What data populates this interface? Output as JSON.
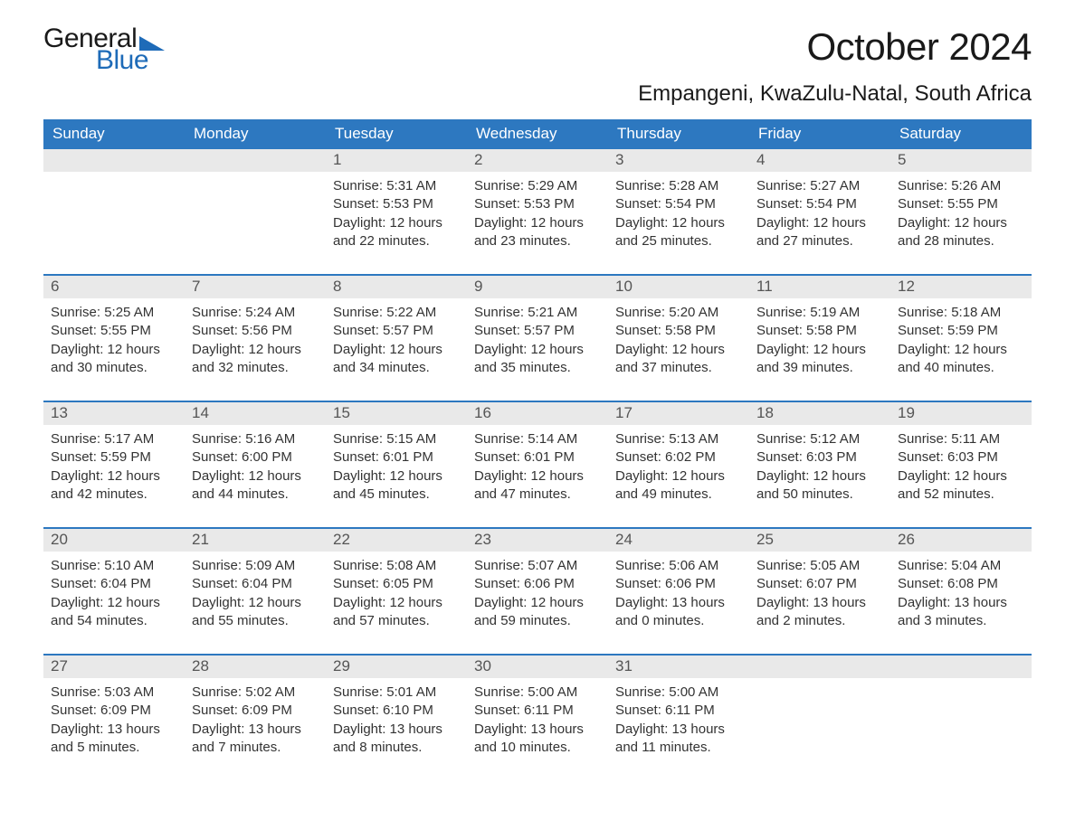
{
  "brand": {
    "word1": "General",
    "word2": "Blue"
  },
  "title": "October 2024",
  "location": "Empangeni, KwaZulu-Natal, South Africa",
  "colors": {
    "header_bg": "#2d78c0",
    "header_text": "#ffffff",
    "daynum_bg": "#e9e9e9",
    "daynum_text": "#555555",
    "body_text": "#333333",
    "brand_blue": "#1e6bb8",
    "page_bg": "#ffffff"
  },
  "typography": {
    "title_fontsize": 42,
    "location_fontsize": 24,
    "dow_fontsize": 17,
    "daynum_fontsize": 17,
    "cell_fontsize": 15
  },
  "layout": {
    "columns": 7,
    "rows": 5
  },
  "days_of_week": [
    "Sunday",
    "Monday",
    "Tuesday",
    "Wednesday",
    "Thursday",
    "Friday",
    "Saturday"
  ],
  "weeks": [
    [
      null,
      null,
      {
        "n": "1",
        "sr": "Sunrise: 5:31 AM",
        "ss": "Sunset: 5:53 PM",
        "d1": "Daylight: 12 hours",
        "d2": "and 22 minutes."
      },
      {
        "n": "2",
        "sr": "Sunrise: 5:29 AM",
        "ss": "Sunset: 5:53 PM",
        "d1": "Daylight: 12 hours",
        "d2": "and 23 minutes."
      },
      {
        "n": "3",
        "sr": "Sunrise: 5:28 AM",
        "ss": "Sunset: 5:54 PM",
        "d1": "Daylight: 12 hours",
        "d2": "and 25 minutes."
      },
      {
        "n": "4",
        "sr": "Sunrise: 5:27 AM",
        "ss": "Sunset: 5:54 PM",
        "d1": "Daylight: 12 hours",
        "d2": "and 27 minutes."
      },
      {
        "n": "5",
        "sr": "Sunrise: 5:26 AM",
        "ss": "Sunset: 5:55 PM",
        "d1": "Daylight: 12 hours",
        "d2": "and 28 minutes."
      }
    ],
    [
      {
        "n": "6",
        "sr": "Sunrise: 5:25 AM",
        "ss": "Sunset: 5:55 PM",
        "d1": "Daylight: 12 hours",
        "d2": "and 30 minutes."
      },
      {
        "n": "7",
        "sr": "Sunrise: 5:24 AM",
        "ss": "Sunset: 5:56 PM",
        "d1": "Daylight: 12 hours",
        "d2": "and 32 minutes."
      },
      {
        "n": "8",
        "sr": "Sunrise: 5:22 AM",
        "ss": "Sunset: 5:57 PM",
        "d1": "Daylight: 12 hours",
        "d2": "and 34 minutes."
      },
      {
        "n": "9",
        "sr": "Sunrise: 5:21 AM",
        "ss": "Sunset: 5:57 PM",
        "d1": "Daylight: 12 hours",
        "d2": "and 35 minutes."
      },
      {
        "n": "10",
        "sr": "Sunrise: 5:20 AM",
        "ss": "Sunset: 5:58 PM",
        "d1": "Daylight: 12 hours",
        "d2": "and 37 minutes."
      },
      {
        "n": "11",
        "sr": "Sunrise: 5:19 AM",
        "ss": "Sunset: 5:58 PM",
        "d1": "Daylight: 12 hours",
        "d2": "and 39 minutes."
      },
      {
        "n": "12",
        "sr": "Sunrise: 5:18 AM",
        "ss": "Sunset: 5:59 PM",
        "d1": "Daylight: 12 hours",
        "d2": "and 40 minutes."
      }
    ],
    [
      {
        "n": "13",
        "sr": "Sunrise: 5:17 AM",
        "ss": "Sunset: 5:59 PM",
        "d1": "Daylight: 12 hours",
        "d2": "and 42 minutes."
      },
      {
        "n": "14",
        "sr": "Sunrise: 5:16 AM",
        "ss": "Sunset: 6:00 PM",
        "d1": "Daylight: 12 hours",
        "d2": "and 44 minutes."
      },
      {
        "n": "15",
        "sr": "Sunrise: 5:15 AM",
        "ss": "Sunset: 6:01 PM",
        "d1": "Daylight: 12 hours",
        "d2": "and 45 minutes."
      },
      {
        "n": "16",
        "sr": "Sunrise: 5:14 AM",
        "ss": "Sunset: 6:01 PM",
        "d1": "Daylight: 12 hours",
        "d2": "and 47 minutes."
      },
      {
        "n": "17",
        "sr": "Sunrise: 5:13 AM",
        "ss": "Sunset: 6:02 PM",
        "d1": "Daylight: 12 hours",
        "d2": "and 49 minutes."
      },
      {
        "n": "18",
        "sr": "Sunrise: 5:12 AM",
        "ss": "Sunset: 6:03 PM",
        "d1": "Daylight: 12 hours",
        "d2": "and 50 minutes."
      },
      {
        "n": "19",
        "sr": "Sunrise: 5:11 AM",
        "ss": "Sunset: 6:03 PM",
        "d1": "Daylight: 12 hours",
        "d2": "and 52 minutes."
      }
    ],
    [
      {
        "n": "20",
        "sr": "Sunrise: 5:10 AM",
        "ss": "Sunset: 6:04 PM",
        "d1": "Daylight: 12 hours",
        "d2": "and 54 minutes."
      },
      {
        "n": "21",
        "sr": "Sunrise: 5:09 AM",
        "ss": "Sunset: 6:04 PM",
        "d1": "Daylight: 12 hours",
        "d2": "and 55 minutes."
      },
      {
        "n": "22",
        "sr": "Sunrise: 5:08 AM",
        "ss": "Sunset: 6:05 PM",
        "d1": "Daylight: 12 hours",
        "d2": "and 57 minutes."
      },
      {
        "n": "23",
        "sr": "Sunrise: 5:07 AM",
        "ss": "Sunset: 6:06 PM",
        "d1": "Daylight: 12 hours",
        "d2": "and 59 minutes."
      },
      {
        "n": "24",
        "sr": "Sunrise: 5:06 AM",
        "ss": "Sunset: 6:06 PM",
        "d1": "Daylight: 13 hours",
        "d2": "and 0 minutes."
      },
      {
        "n": "25",
        "sr": "Sunrise: 5:05 AM",
        "ss": "Sunset: 6:07 PM",
        "d1": "Daylight: 13 hours",
        "d2": "and 2 minutes."
      },
      {
        "n": "26",
        "sr": "Sunrise: 5:04 AM",
        "ss": "Sunset: 6:08 PM",
        "d1": "Daylight: 13 hours",
        "d2": "and 3 minutes."
      }
    ],
    [
      {
        "n": "27",
        "sr": "Sunrise: 5:03 AM",
        "ss": "Sunset: 6:09 PM",
        "d1": "Daylight: 13 hours",
        "d2": "and 5 minutes."
      },
      {
        "n": "28",
        "sr": "Sunrise: 5:02 AM",
        "ss": "Sunset: 6:09 PM",
        "d1": "Daylight: 13 hours",
        "d2": "and 7 minutes."
      },
      {
        "n": "29",
        "sr": "Sunrise: 5:01 AM",
        "ss": "Sunset: 6:10 PM",
        "d1": "Daylight: 13 hours",
        "d2": "and 8 minutes."
      },
      {
        "n": "30",
        "sr": "Sunrise: 5:00 AM",
        "ss": "Sunset: 6:11 PM",
        "d1": "Daylight: 13 hours",
        "d2": "and 10 minutes."
      },
      {
        "n": "31",
        "sr": "Sunrise: 5:00 AM",
        "ss": "Sunset: 6:11 PM",
        "d1": "Daylight: 13 hours",
        "d2": "and 11 minutes."
      },
      null,
      null
    ]
  ]
}
